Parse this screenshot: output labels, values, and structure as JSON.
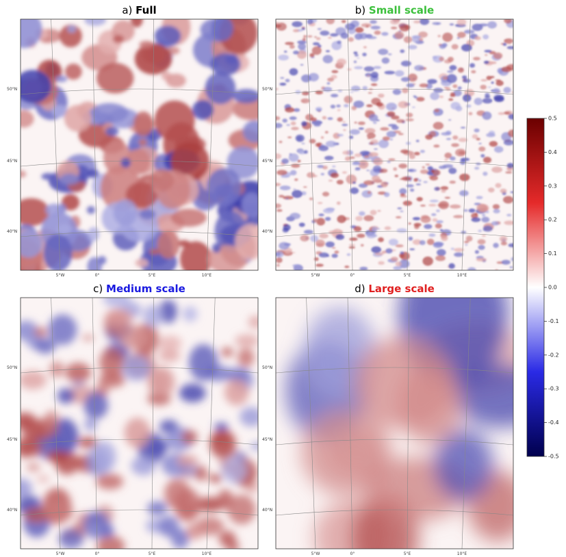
{
  "panels": [
    {
      "label": "a)",
      "name": "Full",
      "name_color": "#000000"
    },
    {
      "label": "b)",
      "name": "Small scale",
      "name_color": "#3cc03c"
    },
    {
      "label": "c)",
      "name": "Medium scale",
      "name_color": "#1a1ae0"
    },
    {
      "label": "d)",
      "name": "Large scale",
      "name_color": "#e02020"
    }
  ],
  "lat_labels": [
    "50°N",
    "45°N",
    "40°N"
  ],
  "lon_labels": [
    "5°W",
    "0°",
    "5°E",
    "10°E"
  ],
  "colorbar": {
    "clim": [
      -0.5,
      0.5
    ],
    "ticks": [
      0.5,
      0.4,
      0.3,
      0.2,
      0.1,
      {
        "value": 0,
        "label": "0.0"
      },
      -0.1,
      -0.2,
      -0.3,
      -0.4,
      -0.5
    ]
  }
}
